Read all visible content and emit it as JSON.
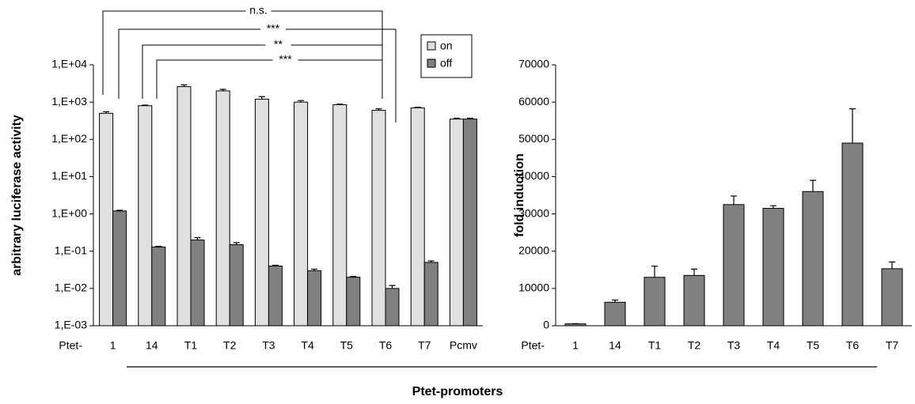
{
  "figure": {
    "xlabel": "Ptet-promoters"
  },
  "chart_data": [
    {
      "type": "bar",
      "log": true,
      "ylabel": "arbitrary luciferase activity",
      "x_prefix": "Ptet-",
      "categories": [
        "1",
        "14",
        "T1",
        "T2",
        "T3",
        "T4",
        "T5",
        "T6",
        "T7",
        "Pcmv"
      ],
      "series": [
        {
          "name": "on",
          "color": "#e0e0e0",
          "values": [
            500,
            800,
            2600,
            2000,
            1200,
            1000,
            850,
            600,
            700,
            350
          ],
          "errors": [
            50,
            30,
            300,
            200,
            200,
            100,
            30,
            60,
            30,
            20
          ]
        },
        {
          "name": "off",
          "color": "#808080",
          "values": [
            1.2,
            0.13,
            0.2,
            0.15,
            0.04,
            0.03,
            0.02,
            0.01,
            0.05,
            350
          ],
          "errors": [
            0.05,
            0.005,
            0.03,
            0.02,
            0.002,
            0.003,
            0.001,
            0.002,
            0.005,
            20
          ]
        }
      ],
      "ylim": [
        0.001,
        10000
      ],
      "yticks": [
        {
          "value": 0.001,
          "label": "1,E-03"
        },
        {
          "value": 0.01,
          "label": "1,E-02"
        },
        {
          "value": 0.1,
          "label": "1,E-01"
        },
        {
          "value": 1,
          "label": "1,E+00"
        },
        {
          "value": 10,
          "label": "1,E+01"
        },
        {
          "value": 100,
          "label": "1,E+02"
        },
        {
          "value": 1000,
          "label": "1,E+03"
        },
        {
          "value": 10000,
          "label": "1,E+04"
        }
      ],
      "legend": "upper right",
      "annotations": [
        "n.s.",
        "***",
        "**",
        "***"
      ]
    },
    {
      "type": "bar",
      "ylabel": "fold induction",
      "x_prefix": "Ptet-",
      "categories": [
        "1",
        "14",
        "T1",
        "T2",
        "T3",
        "T4",
        "T5",
        "T6",
        "T7"
      ],
      "series": [
        {
          "name": "fold induction",
          "color": "#808080",
          "values": [
            500,
            6300,
            13000,
            13500,
            32500,
            31500,
            36000,
            49000,
            15300
          ],
          "errors": [
            50,
            600,
            3000,
            1700,
            2300,
            700,
            3000,
            9200,
            1800
          ]
        }
      ],
      "ylim": [
        0,
        70000
      ],
      "yticks": [
        0,
        10000,
        20000,
        30000,
        40000,
        50000,
        60000,
        70000
      ]
    }
  ]
}
